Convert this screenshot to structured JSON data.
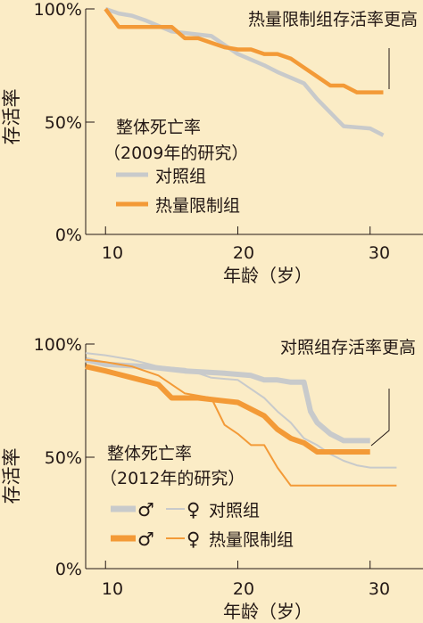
{
  "colors": {
    "background": "#fbecc6",
    "control": "#c8cacb",
    "caloric_restriction": "#f39a37",
    "axis": "#231815"
  },
  "chart_data": [
    {
      "type": "line",
      "study": "2009",
      "title": "整体死亡率",
      "subtitle": "（2009年的研究）",
      "annotation": "热量限制组存活率更高",
      "ylabel": "存活率",
      "xlabel": "年龄（岁）",
      "xlim": [
        8.5,
        34
      ],
      "ylim": [
        0,
        100
      ],
      "xticks": [
        "10",
        "20",
        "30"
      ],
      "yticks": [
        "0%",
        "50%",
        "100%"
      ],
      "legend": [
        {
          "label": "对照组",
          "color": "#c8cacb"
        },
        {
          "label": "热量限制组",
          "color": "#f39a37"
        }
      ],
      "series": [
        {
          "name": "对照组",
          "color": "#c8cacb",
          "x": [
            10,
            11,
            12,
            13,
            15,
            18,
            20,
            22,
            23,
            25,
            26,
            28,
            30,
            31
          ],
          "y": [
            100,
            98,
            97,
            95,
            90,
            88,
            80,
            75,
            72,
            67,
            60,
            48,
            47,
            44
          ]
        },
        {
          "name": "热量限制组",
          "color": "#f39a37",
          "x": [
            10,
            11,
            12,
            14,
            15,
            16,
            17,
            18,
            19,
            20,
            21,
            22,
            23,
            24,
            25,
            26,
            27,
            28,
            29,
            30,
            31
          ],
          "y": [
            100,
            92,
            92,
            92,
            92,
            87,
            87,
            85,
            83,
            82,
            82,
            80,
            80,
            78,
            74,
            70,
            66,
            66,
            63,
            63,
            63
          ]
        }
      ]
    },
    {
      "type": "line",
      "study": "2012",
      "title": "整体死亡率",
      "subtitle": "（2012年的研究）",
      "annotation": "对照组存活率更高",
      "ylabel": "存活率",
      "xlabel": "年龄（岁）",
      "xlim": [
        8.5,
        34
      ],
      "ylim": [
        0,
        100
      ],
      "xticks": [
        "10",
        "20",
        "30"
      ],
      "yticks": [
        "0%",
        "50%",
        "100%"
      ],
      "legend": [
        {
          "label": "♂",
          "color": "#c8cacb",
          "weight": "thick"
        },
        {
          "label": "♀",
          "color": "#c8cacb",
          "weight": "thin"
        },
        {
          "label": "对照组"
        },
        {
          "label": "♂",
          "color": "#f39a37",
          "weight": "thick"
        },
        {
          "label": "♀",
          "color": "#f39a37",
          "weight": "thin"
        },
        {
          "label": "热量限制组"
        }
      ],
      "series": [
        {
          "name": "♂ 对照组",
          "color": "#c8cacb",
          "weight": "thick",
          "x": [
            8.5,
            10,
            13,
            16,
            19,
            21,
            22,
            23,
            24,
            25,
            25.5,
            26,
            27,
            28,
            29,
            30
          ],
          "y": [
            93,
            91,
            90,
            88,
            87,
            86,
            84,
            84,
            83,
            83,
            70,
            65,
            60,
            57,
            57,
            57
          ]
        },
        {
          "name": "♀ 对照组",
          "color": "#c8cacb",
          "weight": "thin",
          "x": [
            8.5,
            10,
            12,
            14,
            16,
            18,
            20,
            22,
            23,
            24,
            25,
            26,
            27,
            28,
            29,
            30,
            32
          ],
          "y": [
            96,
            95,
            93,
            90,
            89,
            85,
            84,
            76,
            70,
            65,
            58,
            55,
            51,
            48,
            46,
            45,
            45
          ]
        },
        {
          "name": "♂ 热量限制组",
          "color": "#f39a37",
          "weight": "thick",
          "x": [
            8.5,
            10,
            12,
            14,
            15,
            17,
            20,
            22,
            23,
            24,
            25,
            26,
            27,
            28,
            29,
            30
          ],
          "y": [
            90,
            88,
            85,
            82,
            76,
            76,
            74,
            68,
            62,
            58,
            56,
            52,
            52,
            52,
            52,
            52
          ]
        },
        {
          "name": "♀ 热量限制组",
          "color": "#f39a37",
          "weight": "thin",
          "x": [
            8.5,
            10,
            12,
            14,
            16,
            18,
            19,
            20,
            21,
            22,
            23,
            24,
            25,
            26,
            28,
            30,
            32
          ],
          "y": [
            93,
            92,
            90,
            86,
            78,
            76,
            64,
            60,
            55,
            55,
            45,
            37,
            37,
            37,
            37,
            37,
            37
          ]
        }
      ]
    }
  ]
}
